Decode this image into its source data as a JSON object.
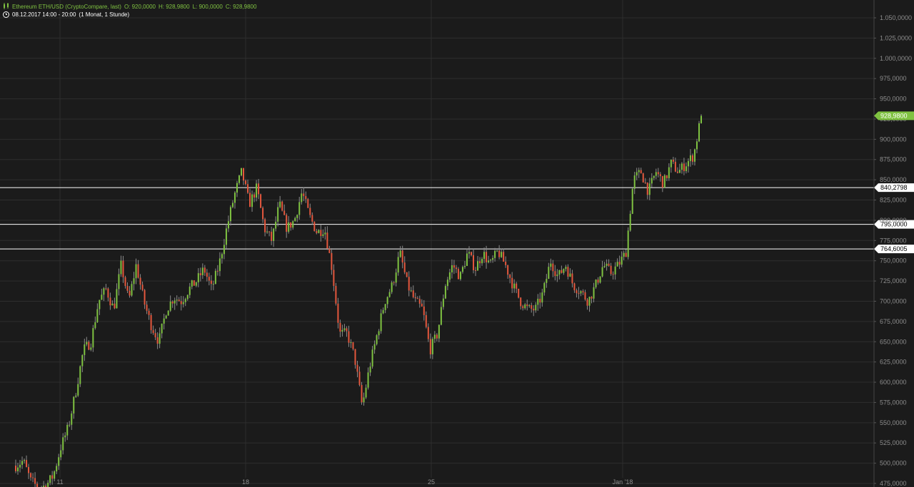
{
  "header": {
    "symbol": "Ethereum ETH/USD (CryptoCompare, last)",
    "open": "O: 920,0000",
    "high": "H: 928,9800",
    "low": "L: 900,0000",
    "close": "C: 928,9800",
    "date_range": "08.12.2017 14:00 - 20:00",
    "interval": "(1 Monat, 1 Stunde)"
  },
  "colors": {
    "background": "#1b1b1b",
    "up": "#7fc241",
    "down": "#e4573d",
    "grid": "#2e2e2e",
    "axis_text": "#8c8c8c",
    "level_line": "#ffffff"
  },
  "chart_data": {
    "type": "candlestick",
    "title": "Ethereum ETH/USD (CryptoCompare, last)",
    "xlabel": "",
    "ylabel": "",
    "ylim": [
      475,
      1062
    ],
    "grid": true,
    "x_ticks": [
      "11",
      "18",
      "25",
      "Jan '18"
    ],
    "y_ticks": [
      "1.050,0000",
      "1.025,0000",
      "1.000,0000",
      "975,0000",
      "950,0000",
      "925,0000",
      "900,0000",
      "875,0000",
      "850,0000",
      "825,0000",
      "800,0000",
      "775,0000",
      "750,0000",
      "725,0000",
      "700,0000",
      "675,0000",
      "650,0000",
      "625,0000",
      "600,0000",
      "575,0000",
      "550,0000",
      "525,0000",
      "500,0000",
      "475,0000"
    ],
    "y_tick_values": [
      1050,
      1025,
      1000,
      975,
      950,
      925,
      900,
      875,
      850,
      825,
      800,
      775,
      750,
      725,
      700,
      675,
      650,
      625,
      600,
      575,
      550,
      525,
      500,
      475
    ],
    "last_price": {
      "value": 928.98,
      "label": "928,9800"
    },
    "horizontal_levels": [
      {
        "value": 840.2798,
        "label": "840,2798"
      },
      {
        "value": 795.0,
        "label": "795,0000"
      },
      {
        "value": 764.6005,
        "label": "764,6005"
      }
    ],
    "price_path": [
      [
        "2017-12-08",
        497
      ],
      [
        "2017-12-08",
        503
      ],
      [
        "2017-12-09",
        478
      ],
      [
        "2017-12-10",
        470
      ],
      [
        "2017-12-11",
        472
      ],
      [
        "2017-12-11",
        485
      ],
      [
        "2017-12-12",
        520
      ],
      [
        "2017-12-12",
        545
      ],
      [
        "2017-12-12",
        590
      ],
      [
        "2017-12-13",
        640
      ],
      [
        "2017-12-13",
        650
      ],
      [
        "2017-12-13",
        700
      ],
      [
        "2017-12-14",
        715
      ],
      [
        "2017-12-14",
        690
      ],
      [
        "2017-12-14",
        745
      ],
      [
        "2017-12-15",
        700
      ],
      [
        "2017-12-15",
        745
      ],
      [
        "2017-12-15",
        700
      ],
      [
        "2017-12-16",
        670
      ],
      [
        "2017-12-16",
        650
      ],
      [
        "2017-12-16",
        690
      ],
      [
        "2017-12-17",
        705
      ],
      [
        "2017-12-17",
        700
      ],
      [
        "2017-12-17",
        715
      ],
      [
        "2017-12-18",
        725
      ],
      [
        "2017-12-18",
        740
      ],
      [
        "2017-12-18",
        715
      ],
      [
        "2017-12-19",
        745
      ],
      [
        "2017-12-19",
        790
      ],
      [
        "2017-12-19",
        830
      ],
      [
        "2017-12-20",
        860
      ],
      [
        "2017-12-20",
        820
      ],
      [
        "2017-12-20",
        840
      ],
      [
        "2017-12-21",
        790
      ],
      [
        "2017-12-21",
        775
      ],
      [
        "2017-12-21",
        820
      ],
      [
        "2017-12-22",
        790
      ],
      [
        "2017-12-22",
        800
      ],
      [
        "2017-12-22",
        835
      ],
      [
        "2017-12-22",
        805
      ],
      [
        "2017-12-23",
        785
      ],
      [
        "2017-12-23",
        790
      ],
      [
        "2017-12-23",
        740
      ],
      [
        "2017-12-23",
        660
      ],
      [
        "2017-12-23",
        660
      ],
      [
        "2017-12-24",
        630
      ],
      [
        "2017-12-24",
        570
      ],
      [
        "2017-12-24",
        620
      ],
      [
        "2017-12-24",
        660
      ],
      [
        "2017-12-24",
        700
      ],
      [
        "2017-12-25",
        720
      ],
      [
        "2017-12-25",
        760
      ],
      [
        "2017-12-25",
        720
      ],
      [
        "2017-12-26",
        700
      ],
      [
        "2017-12-26",
        690
      ],
      [
        "2017-12-26",
        640
      ],
      [
        "2017-12-27",
        660
      ],
      [
        "2017-12-27",
        720
      ],
      [
        "2017-12-27",
        745
      ],
      [
        "2017-12-28",
        730
      ],
      [
        "2017-12-28",
        760
      ],
      [
        "2017-12-28",
        740
      ],
      [
        "2017-12-29",
        760
      ],
      [
        "2017-12-29",
        745
      ],
      [
        "2017-12-29",
        762
      ],
      [
        "2017-12-30",
        745
      ],
      [
        "2017-12-30",
        720
      ],
      [
        "2017-12-30",
        700
      ],
      [
        "2017-12-31",
        690
      ],
      [
        "2017-12-31",
        690
      ],
      [
        "2017-12-31",
        710
      ],
      [
        "2018-01-01",
        750
      ],
      [
        "2018-01-01",
        730
      ],
      [
        "2018-01-01",
        745
      ],
      [
        "2018-01-01",
        720
      ],
      [
        "2018-01-02",
        712
      ],
      [
        "2018-01-02",
        700
      ],
      [
        "2018-01-02",
        720
      ],
      [
        "2018-01-03",
        745
      ],
      [
        "2018-01-03",
        735
      ],
      [
        "2018-01-03",
        745
      ],
      [
        "2018-01-03",
        760
      ],
      [
        "2018-01-04",
        850
      ],
      [
        "2018-01-04",
        860
      ],
      [
        "2018-01-04",
        835
      ],
      [
        "2018-01-05",
        860
      ],
      [
        "2018-01-05",
        845
      ],
      [
        "2018-01-05",
        870
      ],
      [
        "2018-01-05",
        860
      ],
      [
        "2018-01-06",
        870
      ],
      [
        "2018-01-06",
        880
      ],
      [
        "2018-01-06",
        929
      ]
    ],
    "axis_font_note": ""
  }
}
